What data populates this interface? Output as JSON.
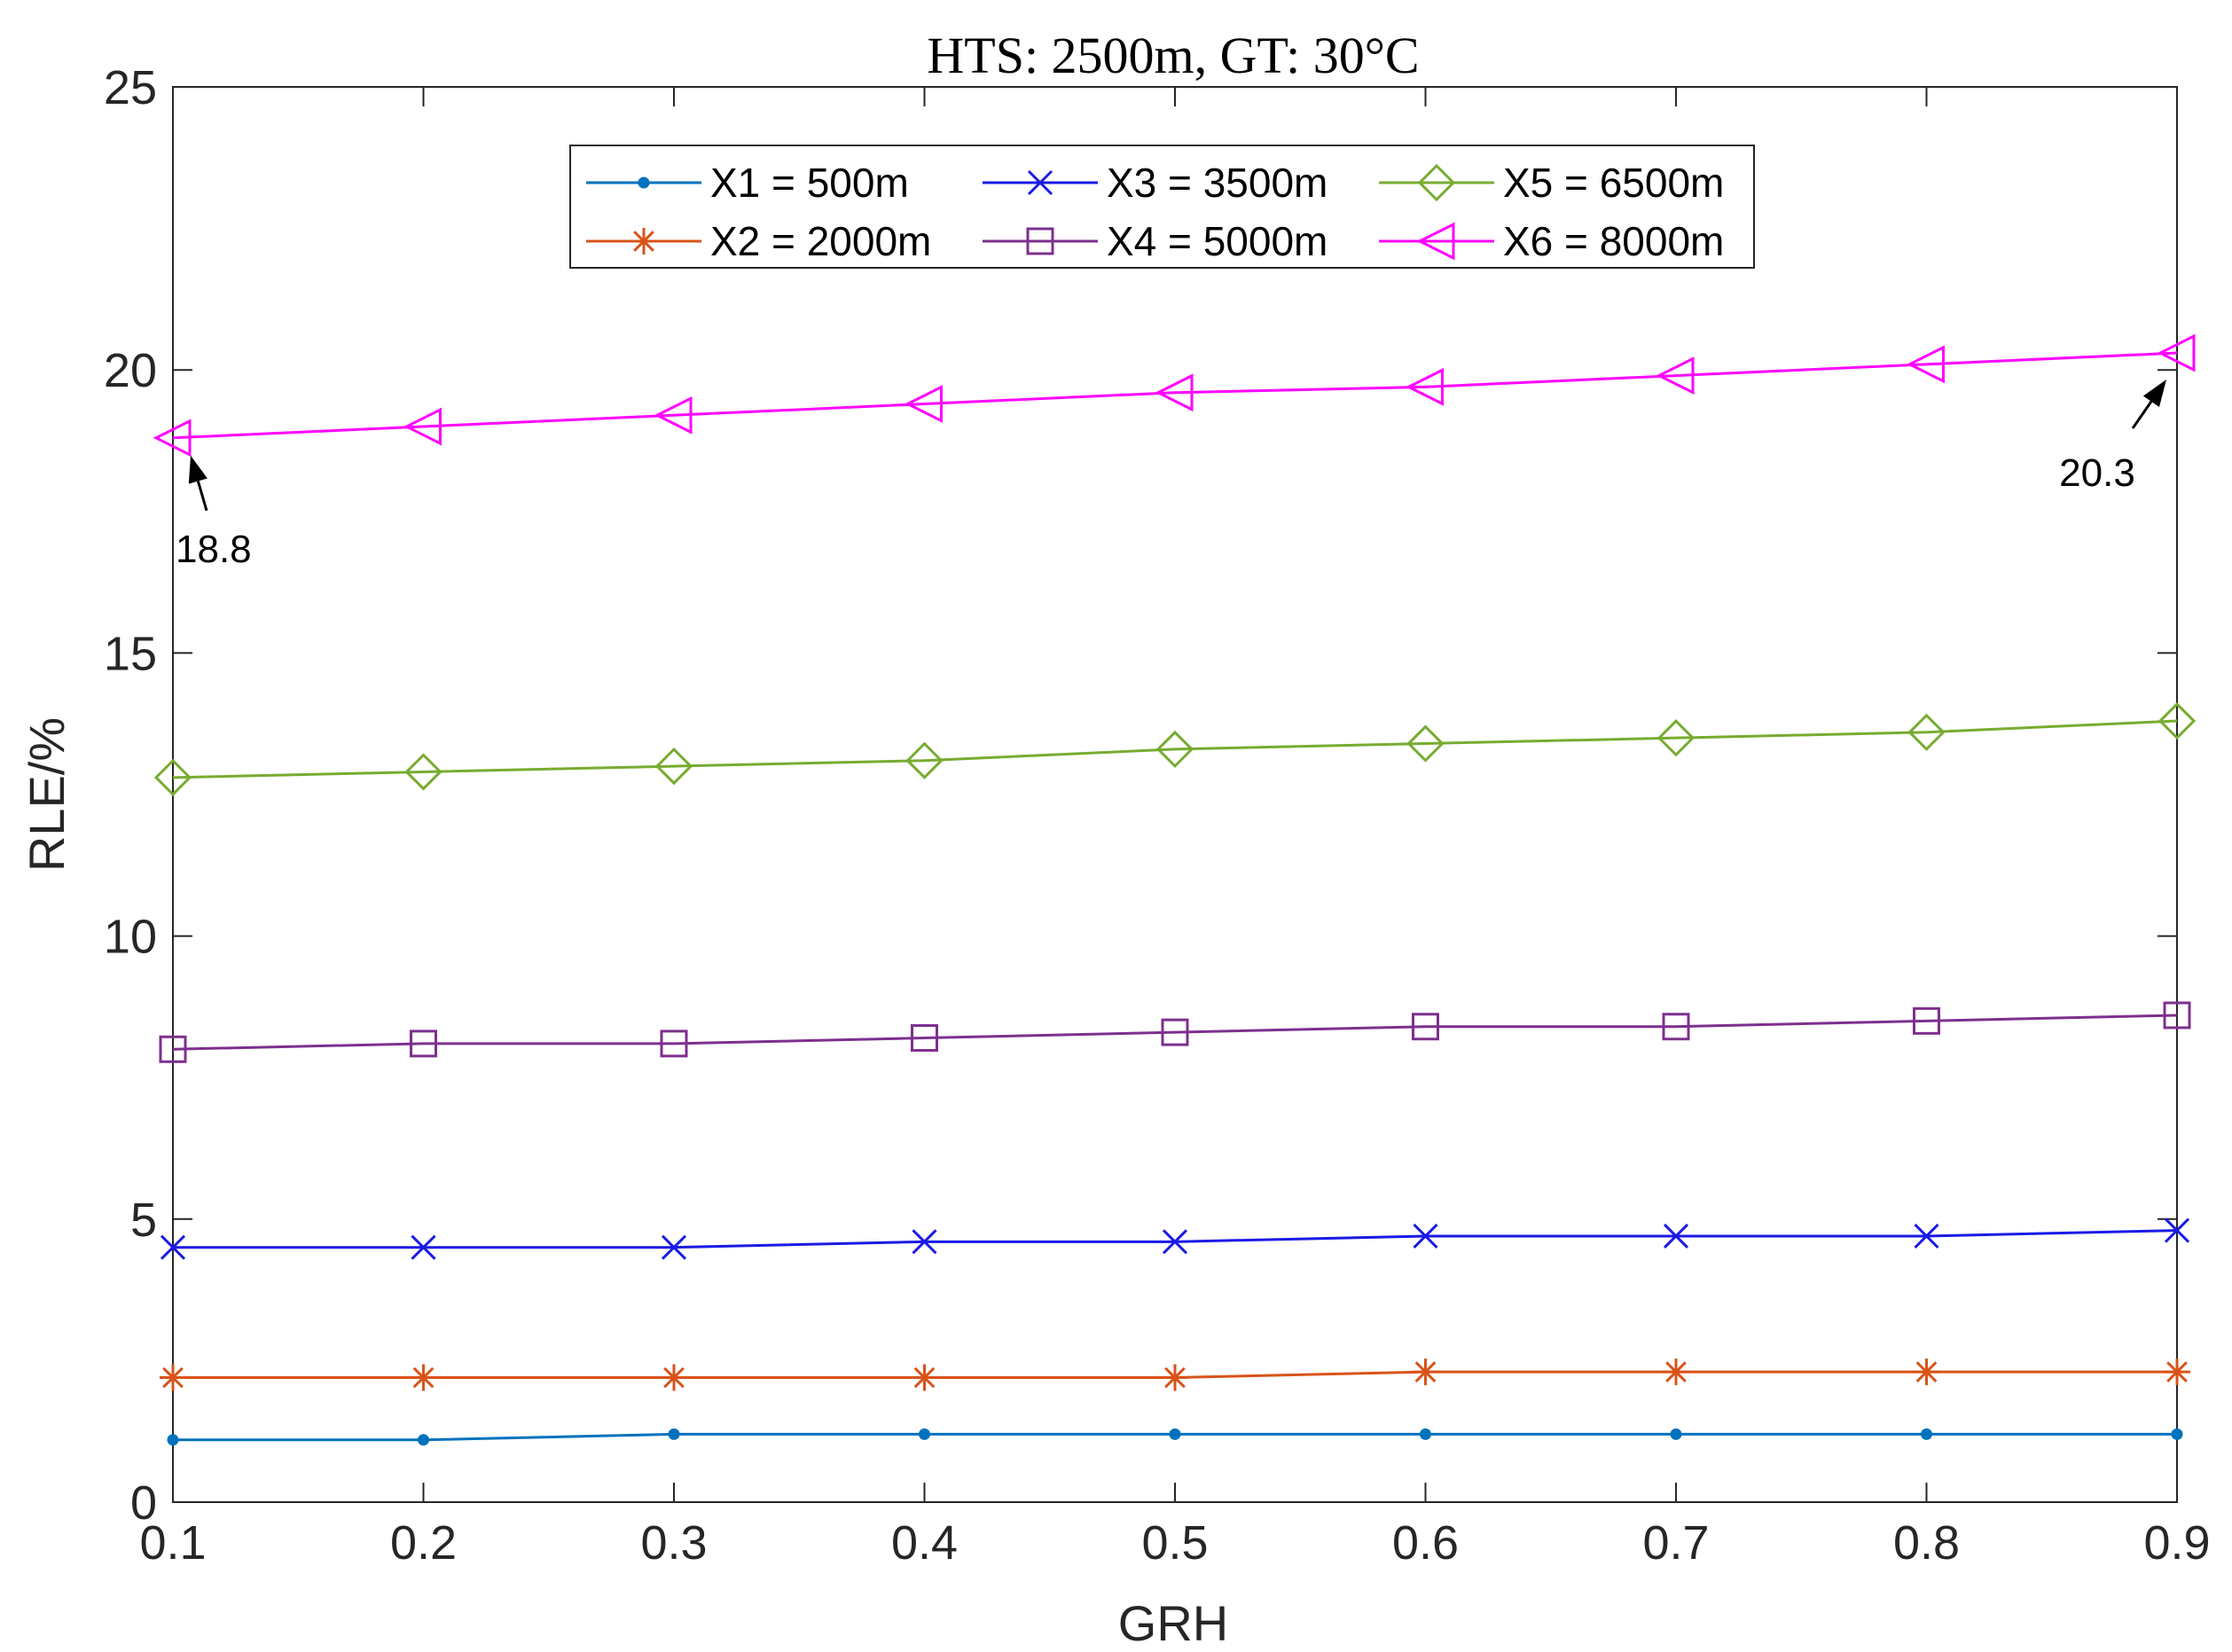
{
  "chart_data": {
    "type": "line",
    "title": "HTS: 2500m, GT: 30°C",
    "xlabel": "GRH",
    "ylabel": "RLE/%",
    "xlim": [
      0.1,
      0.9
    ],
    "ylim": [
      0,
      25
    ],
    "xticks": [
      "0.1",
      "0.2",
      "0.3",
      "0.4",
      "0.5",
      "0.6",
      "0.7",
      "0.8",
      "0.9"
    ],
    "yticks": [
      "0",
      "5",
      "10",
      "15",
      "20",
      "25"
    ],
    "grid": false,
    "legend_position": "top-center",
    "x": [
      0.1,
      0.2,
      0.3,
      0.4,
      0.5,
      0.6,
      0.7,
      0.8,
      0.9
    ],
    "series": [
      {
        "name": "X1 = 500m",
        "color": "#0072BD",
        "marker": "dot",
        "values": [
          1.1,
          1.1,
          1.2,
          1.2,
          1.2,
          1.2,
          1.2,
          1.2,
          1.2
        ]
      },
      {
        "name": "X2 = 2000m",
        "color": "#D95319",
        "marker": "star",
        "values": [
          2.2,
          2.2,
          2.2,
          2.2,
          2.2,
          2.3,
          2.3,
          2.3,
          2.3
        ]
      },
      {
        "name": "X3 = 3500m",
        "color": "#1A1AE6",
        "marker": "x",
        "values": [
          4.5,
          4.5,
          4.5,
          4.6,
          4.6,
          4.7,
          4.7,
          4.7,
          4.8
        ]
      },
      {
        "name": "X4 = 5000m",
        "color": "#7E2F8E",
        "marker": "square",
        "values": [
          8.0,
          8.1,
          8.1,
          8.2,
          8.3,
          8.4,
          8.4,
          8.5,
          8.6
        ]
      },
      {
        "name": "X5 = 6500m",
        "color": "#77AC30",
        "marker": "diamond",
        "values": [
          12.8,
          12.9,
          13.0,
          13.1,
          13.3,
          13.4,
          13.5,
          13.6,
          13.8
        ]
      },
      {
        "name": "X6 = 8000m",
        "color": "#FF00FF",
        "marker": "triangle-left",
        "values": [
          18.8,
          19.0,
          19.2,
          19.4,
          19.6,
          19.7,
          19.9,
          20.1,
          20.3
        ]
      }
    ],
    "annotations": [
      {
        "text": "18.8",
        "x": 0.1,
        "y": 18.8
      },
      {
        "text": "20.3",
        "x": 0.9,
        "y": 20.3
      }
    ]
  }
}
